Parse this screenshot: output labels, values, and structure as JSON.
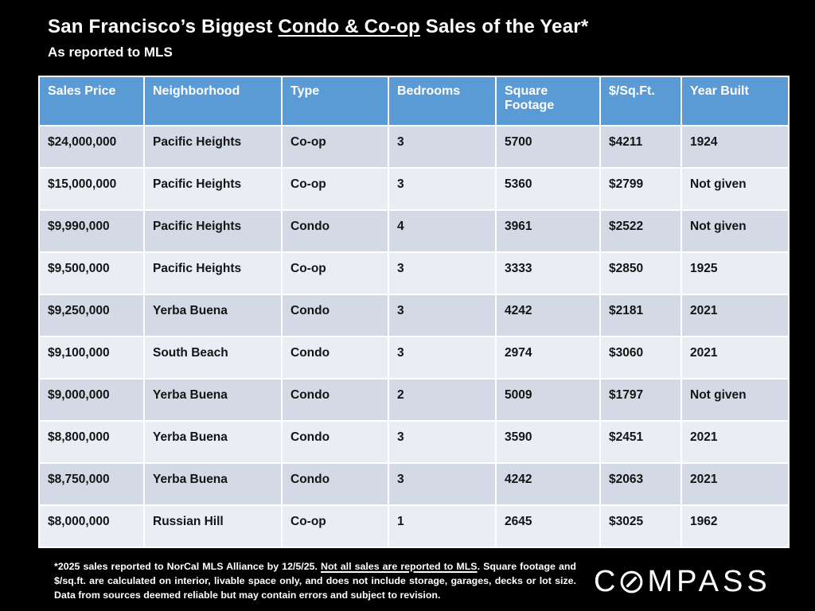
{
  "colors": {
    "background": "#000000",
    "table_header_blue": "#5B9BD5",
    "row_band_dark": "#D3DAE6",
    "row_band_light": "#EAEDF3",
    "text_on_dark": "#FFFFFF",
    "table_text": "#141414"
  },
  "header": {
    "title_prefix": "San Francisco’s Biggest ",
    "title_underlined": "Condo & Co-op",
    "title_suffix": " Sales of the Year*",
    "subtitle": "As reported to MLS"
  },
  "chart_data": {
    "type": "table",
    "title": "San Francisco’s Biggest Condo & Co-op Sales of the Year*",
    "subtitle": "As reported to MLS",
    "columns": [
      "Sales Price",
      "Neighborhood",
      "Type",
      "Bedrooms",
      "Square Footage",
      "$/Sq.Ft.",
      "Year Built"
    ],
    "rows": [
      [
        "$24,000,000",
        "Pacific Heights",
        "Co-op",
        "3",
        "5700",
        "$4211",
        "1924"
      ],
      [
        "$15,000,000",
        "Pacific Heights",
        "Co-op",
        "3",
        "5360",
        "$2799",
        "Not given"
      ],
      [
        "$9,990,000",
        "Pacific Heights",
        "Condo",
        "4",
        "3961",
        "$2522",
        "Not given"
      ],
      [
        "$9,500,000",
        "Pacific Heights",
        "Co-op",
        "3",
        "3333",
        "$2850",
        "1925"
      ],
      [
        "$9,250,000",
        "Yerba Buena",
        "Condo",
        "3",
        "4242",
        "$2181",
        "2021"
      ],
      [
        "$9,100,000",
        "South Beach",
        "Condo",
        "3",
        "2974",
        "$3060",
        "2021"
      ],
      [
        "$9,000,000",
        "Yerba Buena",
        "Condo",
        "2",
        "5009",
        "$1797",
        "Not given"
      ],
      [
        "$8,800,000",
        "Yerba Buena",
        "Condo",
        "3",
        "3590",
        "$2451",
        "2021"
      ],
      [
        "$8,750,000",
        "Yerba Buena",
        "Condo",
        "3",
        "4242",
        "$2063",
        "2021"
      ],
      [
        "$8,000,000",
        "Russian Hill",
        "Co-op",
        "1",
        "2645",
        "$3025",
        "1962"
      ]
    ]
  },
  "footer": {
    "disclaimer_part1": "*2025 sales reported to NorCal MLS Alliance by 12/5/25. ",
    "disclaimer_underlined": "Not all sales are reported to MLS",
    "disclaimer_part2": ". Square footage and $/sq.ft. are calculated on interior, livable space only, and does not include storage, garages, decks or lot size. Data from sources deemed reliable but may contain errors and subject to revision.",
    "brand_name": "COMPASS",
    "brand_left": "C",
    "brand_right": "MPASS"
  }
}
